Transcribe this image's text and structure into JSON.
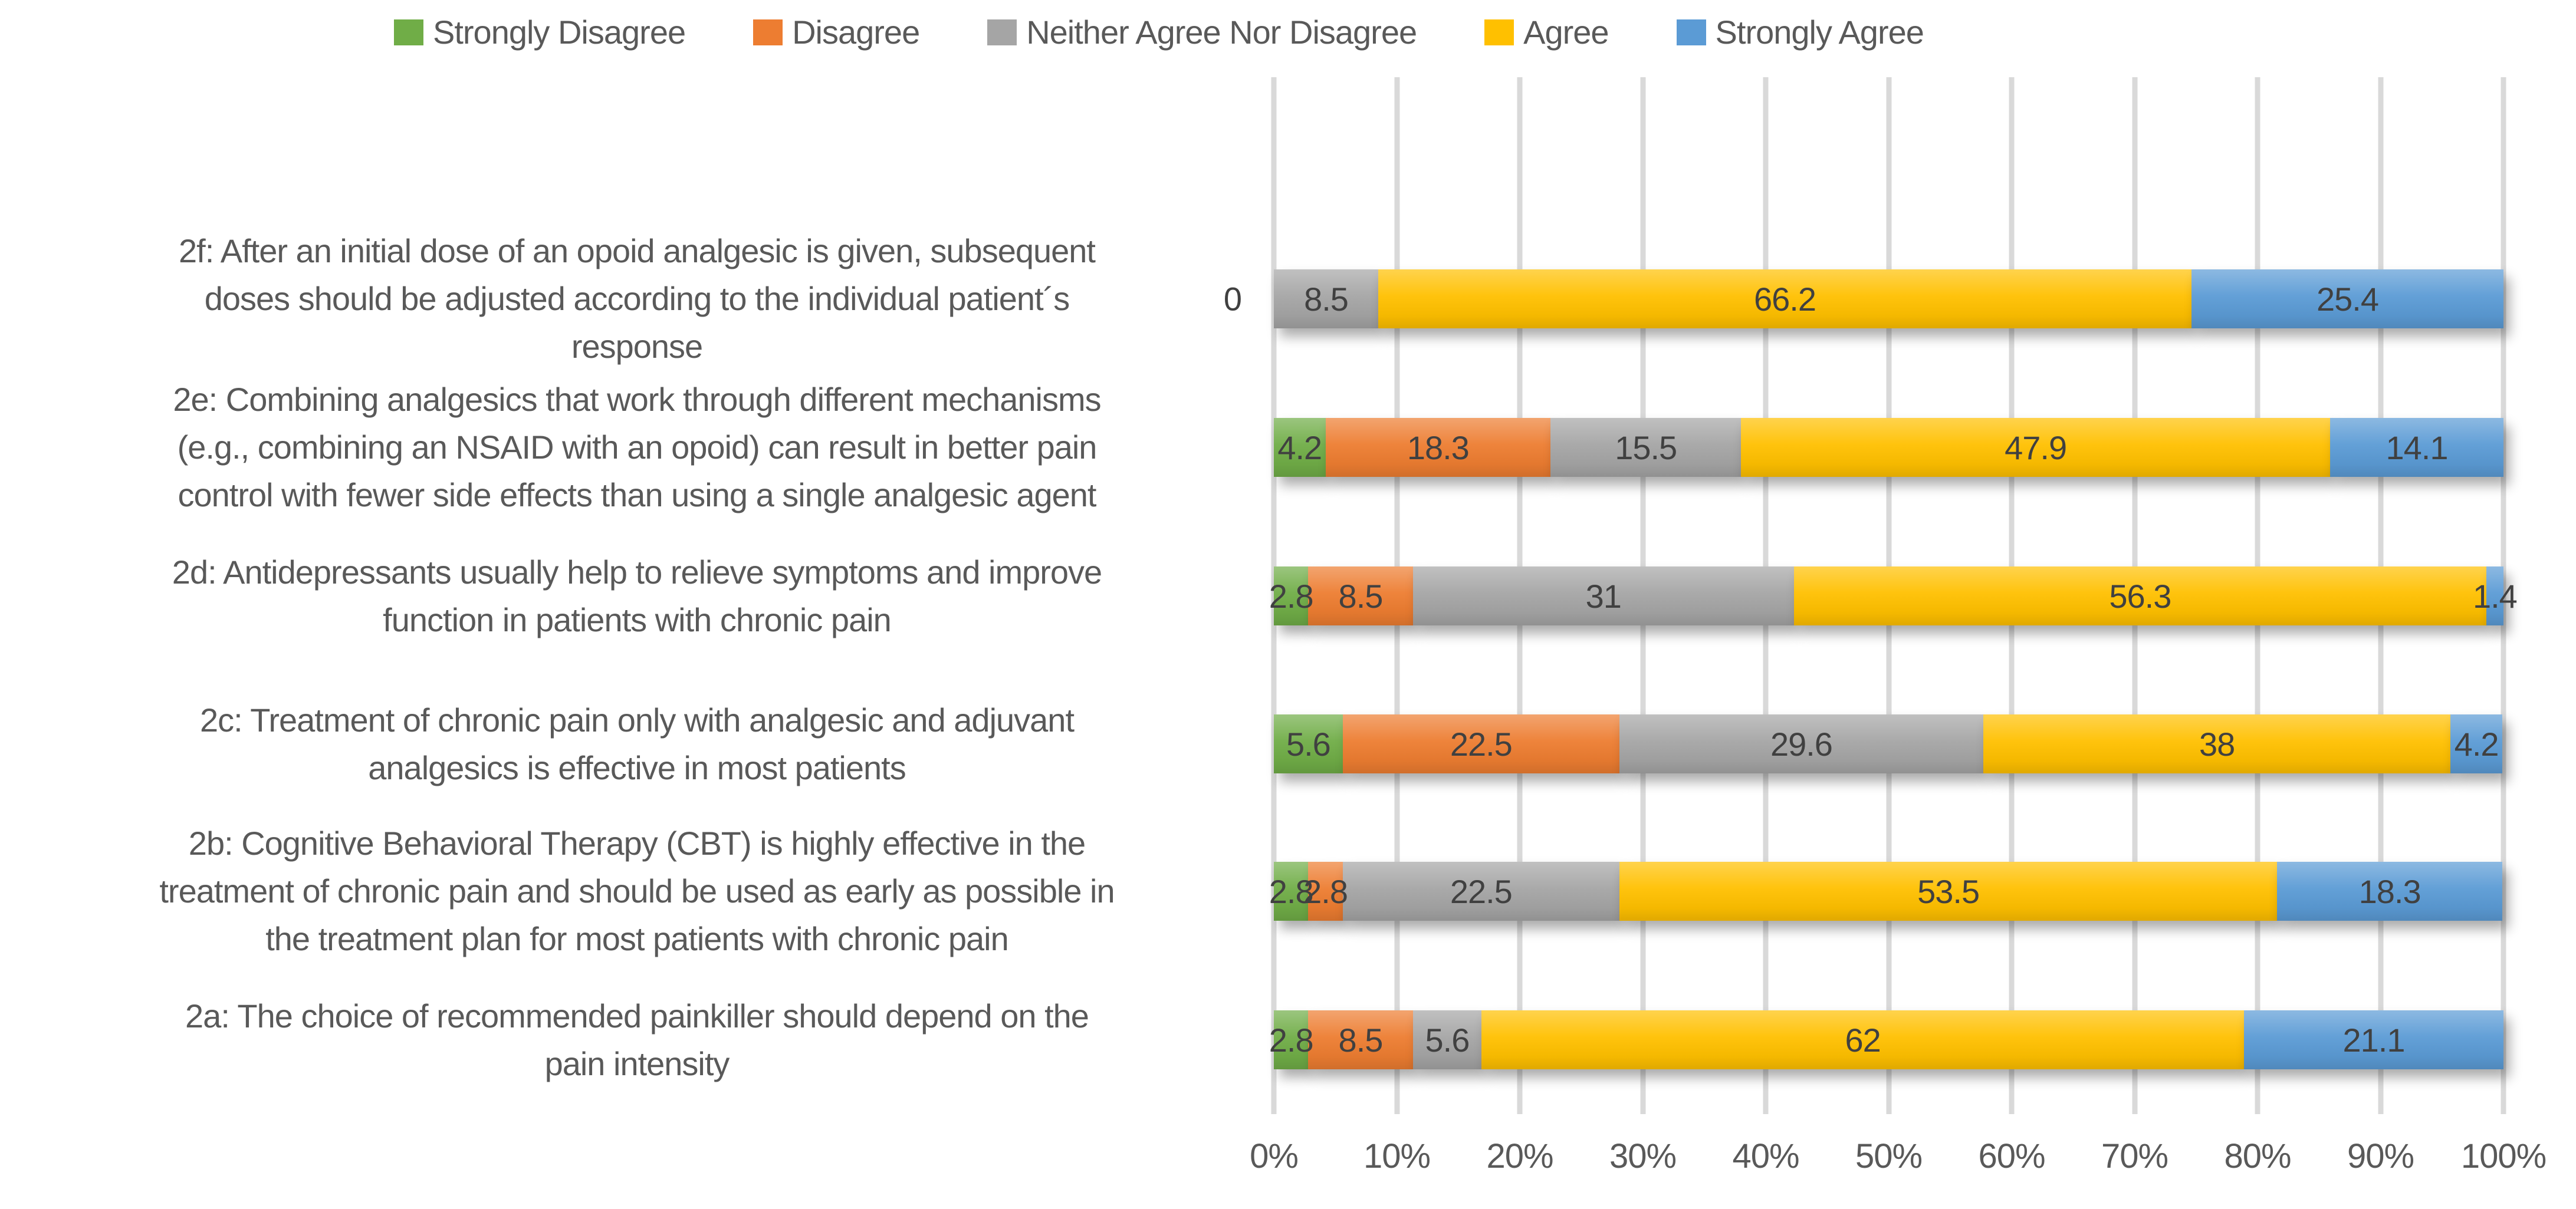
{
  "chart_data": {
    "type": "bar",
    "orientation": "horizontal",
    "stacked": true,
    "unit": "percent",
    "title": "",
    "xlabel": "",
    "ylabel": "",
    "xlim": [
      0,
      100
    ],
    "grid": true,
    "legend_position": "top",
    "x_ticks": [
      "0%",
      "10%",
      "20%",
      "30%",
      "40%",
      "50%",
      "60%",
      "70%",
      "80%",
      "90%",
      "100%"
    ],
    "series": [
      {
        "name": "Strongly Disagree",
        "color": "#70AD47"
      },
      {
        "name": "Disagree",
        "color": "#ED7D31"
      },
      {
        "name": "Neither Agree Nor Disagree",
        "color": "#A5A5A5"
      },
      {
        "name": "Agree",
        "color": "#FFC000"
      },
      {
        "name": "Strongly Agree",
        "color": "#5B9BD5"
      }
    ],
    "rows": [
      {
        "id": "2f",
        "category_lines": [
          "2f: After an initial dose of an opoid analgesic is given, subsequent",
          "doses should be adjusted according to the individual patient´s",
          "response"
        ],
        "values": [
          0,
          0,
          8.5,
          66.2,
          25.4
        ],
        "value_labels": [
          "0",
          "",
          "8.5",
          "66.2",
          "25.4"
        ]
      },
      {
        "id": "2e",
        "category_lines": [
          "2e: Combining analgesics that work through different mechanisms",
          "(e.g., combining an NSAID with an opoid) can result in better pain",
          "control with fewer side effects than using a single analgesic agent"
        ],
        "values": [
          4.2,
          18.3,
          15.5,
          47.9,
          14.1
        ],
        "value_labels": [
          "4.2",
          "18.3",
          "15.5",
          "47.9",
          "14.1"
        ]
      },
      {
        "id": "2d",
        "category_lines": [
          "2d: Antidepressants usually help to relieve symptoms and improve",
          "function in patients with chronic pain"
        ],
        "values": [
          2.8,
          8.5,
          31,
          56.3,
          1.4
        ],
        "value_labels": [
          "2.8",
          "8.5",
          "31",
          "56.3",
          "1.4"
        ]
      },
      {
        "id": "2c",
        "category_lines": [
          "2c: Treatment of chronic pain only with analgesic and adjuvant",
          "analgesics is effective in most patients"
        ],
        "values": [
          5.6,
          22.5,
          29.6,
          38,
          4.2
        ],
        "value_labels": [
          "5.6",
          "22.5",
          "29.6",
          "38",
          "4.2"
        ]
      },
      {
        "id": "2b",
        "category_lines": [
          "2b: Cognitive Behavioral Therapy (CBT) is highly effective in the",
          "treatment of chronic pain and should be used as early as possible in",
          "the treatment plan for most patients with chronic pain"
        ],
        "values": [
          2.8,
          2.8,
          22.5,
          53.5,
          18.3
        ],
        "value_labels": [
          "2.8",
          "2.8",
          "22.5",
          "53.5",
          "18.3"
        ]
      },
      {
        "id": "2a",
        "category_lines": [
          "2a: The choice of recommended painkiller should depend on the",
          "pain intensity"
        ],
        "values": [
          2.8,
          8.5,
          5.6,
          62,
          21.1
        ],
        "value_labels": [
          "2.8",
          "8.5",
          "5.6",
          "62",
          "21.1"
        ]
      }
    ],
    "colors": {
      "grid": "#D9D9D9",
      "axis_text": "#595959",
      "category_text": "#595959",
      "data_label_text": "#404040",
      "background": "#FFFFFF"
    }
  }
}
